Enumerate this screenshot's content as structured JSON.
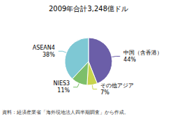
{
  "chart_data": {
    "type": "pie",
    "title": "2009年合計3,248億ドル",
    "categories": [
      "中国（含香港）",
      "その他アジア",
      "NIES3",
      "ASEAN4"
    ],
    "values": [
      44,
      7,
      11,
      38
    ],
    "value_labels": [
      "44%",
      "7%",
      "11%",
      "38%"
    ],
    "colors": [
      "#6B5EA8",
      "#C8D44E",
      "#7DBF6A",
      "#7EC8D4"
    ],
    "data_labels": true,
    "annotations": [
      "資料：経済産業省「海外現地法人四半期調査」から作成。"
    ]
  }
}
